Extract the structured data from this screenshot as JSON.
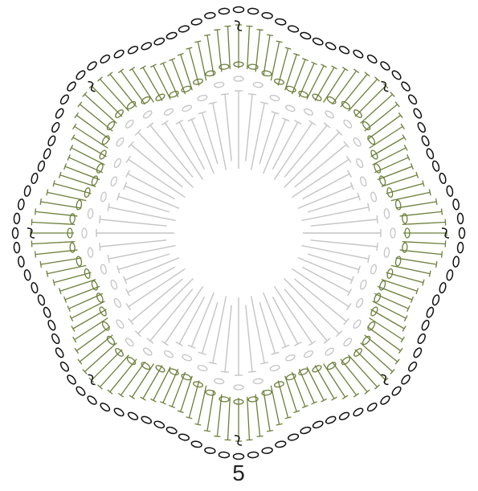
{
  "label": "5"
}
